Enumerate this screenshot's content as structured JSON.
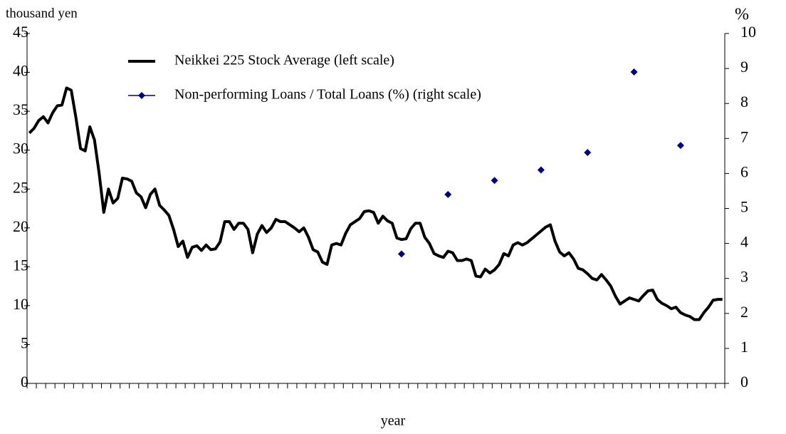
{
  "chart_data": {
    "type": "line",
    "ylabel": "thousand yen",
    "y2label": "%",
    "xlabel": "year",
    "categories": [
      null,
      null,
      null,
      null,
      null,
      null,
      null,
      null,
      null,
      null,
      null,
      null,
      null,
      null,
      null,
      null,
      null,
      null,
      null,
      null,
      null,
      null,
      null,
      null,
      null,
      null,
      null,
      null,
      null,
      null,
      null,
      null,
      null,
      null,
      null,
      null,
      null,
      null,
      null,
      null,
      null,
      null,
      null,
      null,
      null,
      null,
      null,
      null,
      null,
      null,
      null,
      null,
      null,
      null,
      null,
      null,
      null,
      null,
      null,
      null,
      null,
      null,
      null,
      null,
      null,
      null,
      null,
      null,
      null,
      null,
      null,
      null,
      null,
      null,
      null,
      null,
      null,
      null,
      null,
      null,
      null,
      null,
      null,
      null,
      null,
      null,
      null,
      null,
      null,
      null,
      null,
      null,
      null,
      null,
      null,
      null,
      null,
      null,
      null,
      null,
      null,
      null,
      null,
      null,
      null,
      null,
      null,
      null,
      null,
      null,
      null,
      null,
      null,
      null,
      null,
      null,
      null,
      null,
      null,
      null,
      null,
      null,
      null,
      null,
      null,
      null,
      null,
      null,
      null,
      null,
      null,
      null,
      null,
      null,
      null,
      null,
      null,
      null,
      null,
      null,
      null,
      null,
      null,
      null,
      null,
      null,
      null,
      null,
      null,
      null
    ],
    "series": [
      {
        "name": "Neikkei 225 Stock Average (left scale)",
        "color": "#000000",
        "marker": "none",
        "axis": "y",
        "values": [
          32.2,
          32.8,
          33.8,
          34.3,
          33.5,
          34.8,
          35.7,
          35.8,
          38,
          37.7,
          34.2,
          30.2,
          29.9,
          33,
          31.3,
          27,
          22,
          25,
          23.2,
          23.8,
          26.4,
          26.3,
          26,
          24.5,
          24,
          22.6,
          24.3,
          25,
          22.9,
          22.3,
          21.6,
          19.8,
          17.6,
          18.3,
          16.2,
          17.5,
          17.7,
          17.1,
          17.8,
          17.2,
          17.3,
          18.2,
          20.8,
          20.8,
          19.8,
          20.6,
          20.6,
          19.8,
          16.8,
          19.2,
          20.3,
          19.4,
          20,
          21.1,
          20.8,
          20.8,
          20.4,
          20,
          19.5,
          20,
          18.8,
          17.2,
          16.9,
          15.6,
          15.3,
          17.8,
          18,
          17.8,
          19.3,
          20.4,
          20.8,
          21.2,
          22.1,
          22.2,
          22,
          20.6,
          21.5,
          20.9,
          20.6,
          18.7,
          18.5,
          18.6,
          19.9,
          20.6,
          20.6,
          18.8,
          18,
          16.7,
          16.4,
          16.2,
          17,
          16.8,
          15.8,
          15.8,
          16,
          15.8,
          13.8,
          13.7,
          14.7,
          14.2,
          14.6,
          15.3,
          16.7,
          16.4,
          17.8,
          18.1,
          17.8,
          18.1,
          18.6,
          19.1,
          19.6,
          20.1,
          20.4,
          18.3,
          16.9,
          16.4,
          16.8,
          16,
          14.8,
          14.6,
          14.1,
          13.5,
          13.3,
          14,
          13.3,
          12.5,
          11.2,
          10.2,
          10.6,
          11,
          10.8,
          10.6,
          11.3,
          11.9,
          12,
          10.8,
          10.3,
          10,
          9.6,
          9.8,
          9.1,
          8.8,
          8.6,
          8.2,
          8.2,
          9.1,
          9.8,
          10.7,
          10.8,
          10.8
        ]
      },
      {
        "name": "Non-performing Loans / Total Loans (%) (right scale)",
        "color": "#000080",
        "marker": "diamond",
        "axis": "y2",
        "values": [
          null,
          null,
          null,
          null,
          null,
          null,
          null,
          null,
          null,
          null,
          null,
          null,
          null,
          null,
          null,
          null,
          null,
          null,
          null,
          null,
          null,
          null,
          null,
          null,
          null,
          null,
          null,
          null,
          null,
          null,
          null,
          null,
          null,
          null,
          null,
          null,
          null,
          null,
          null,
          null,
          null,
          null,
          null,
          null,
          null,
          null,
          null,
          null,
          null,
          null,
          null,
          null,
          null,
          null,
          null,
          null,
          null,
          null,
          null,
          null,
          null,
          null,
          null,
          null,
          null,
          null,
          null,
          null,
          null,
          null,
          null,
          null,
          null,
          null,
          null,
          null,
          null,
          null,
          null,
          null,
          3.7,
          null,
          null,
          null,
          null,
          null,
          null,
          null,
          null,
          null,
          5.4,
          null,
          null,
          null,
          null,
          null,
          null,
          null,
          null,
          null,
          5.8,
          null,
          null,
          null,
          null,
          null,
          null,
          null,
          null,
          null,
          6.1,
          null,
          null,
          null,
          null,
          null,
          null,
          null,
          null,
          null,
          6.6,
          null,
          null,
          null,
          null,
          null,
          null,
          null,
          null,
          null,
          8.9,
          null,
          null,
          null,
          null,
          null,
          null,
          null,
          null,
          null,
          6.8,
          null,
          null,
          null,
          null,
          null,
          null,
          null,
          null,
          null
        ]
      }
    ],
    "ylim": [
      0,
      45
    ],
    "yticks": [
      0,
      5,
      10,
      15,
      20,
      25,
      30,
      35,
      40,
      45
    ],
    "y2lim": [
      0,
      10
    ],
    "y2ticks": [
      0,
      1,
      2,
      3,
      4,
      5,
      6,
      7,
      8,
      9,
      10
    ],
    "grid": false
  }
}
